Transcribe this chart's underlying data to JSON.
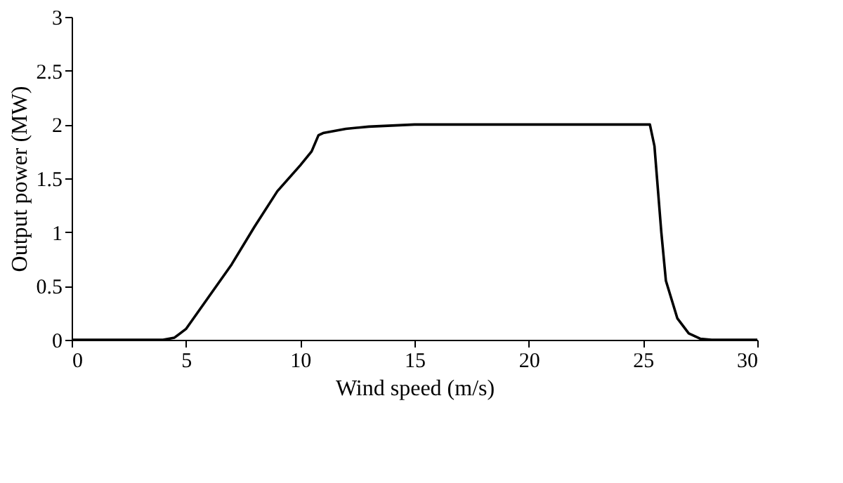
{
  "chart_data": {
    "type": "line",
    "xlabel": "Wind speed (m/s)",
    "ylabel": "Output power (MW)",
    "x": [
      0,
      4,
      4.5,
      5,
      6,
      7,
      8,
      9,
      10,
      10.5,
      10.8,
      11,
      12,
      13,
      15,
      20,
      25,
      25.3,
      25.5,
      25.8,
      26,
      26.5,
      27,
      27.5,
      28,
      30
    ],
    "series": [
      {
        "color": "#000000",
        "values": [
          0,
          0,
          0.02,
          0.1,
          0.4,
          0.7,
          1.05,
          1.38,
          1.62,
          1.75,
          1.9,
          1.92,
          1.96,
          1.98,
          2.0,
          2.0,
          2.0,
          2.0,
          1.8,
          1.0,
          0.55,
          0.2,
          0.06,
          0.01,
          0,
          0
        ]
      }
    ],
    "xlim": [
      0,
      30
    ],
    "xticks": [
      0,
      5,
      10,
      15,
      20,
      25,
      30
    ],
    "ylim": [
      0,
      3
    ],
    "yticks": [
      0,
      0.5,
      1,
      1.5,
      2,
      2.5,
      3
    ],
    "grid": false,
    "marker": "none",
    "line_style": "solid"
  }
}
